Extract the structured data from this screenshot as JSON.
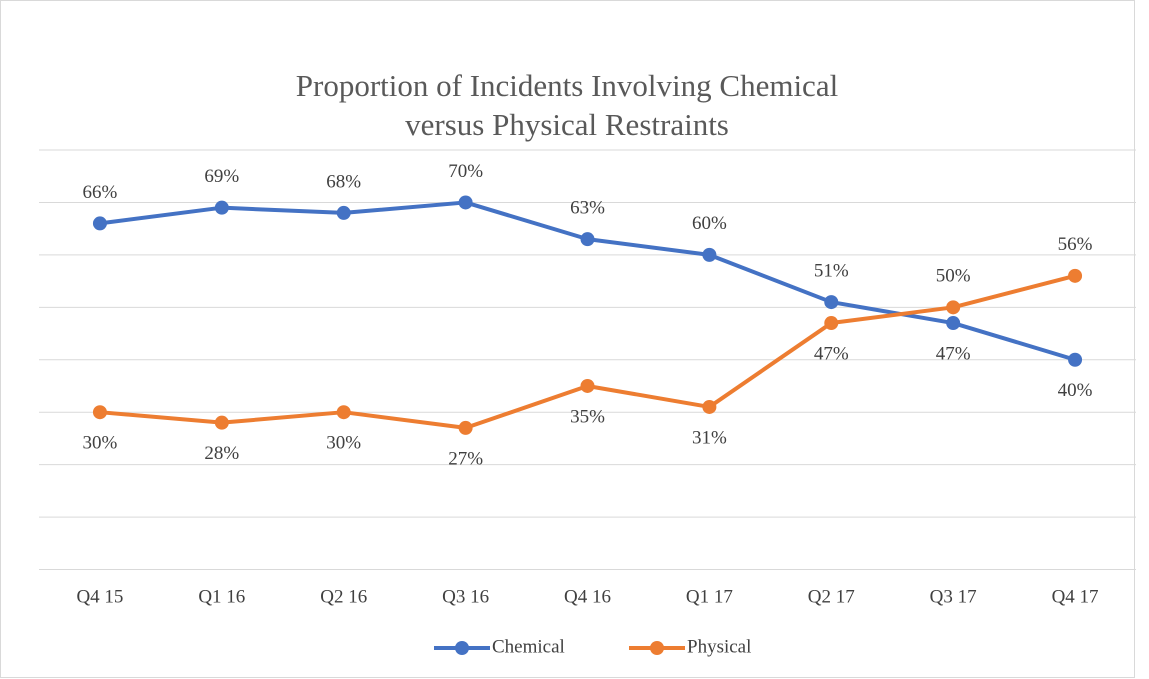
{
  "chart_data": {
    "type": "line",
    "title": "Proportion of Incidents Involving Chemical versus Physical Restraints",
    "categories": [
      "Q4 15",
      "Q1 16",
      "Q2 16",
      "Q3 16",
      "Q4 16",
      "Q1 17",
      "Q2 17",
      "Q3 17",
      "Q4 17"
    ],
    "series": [
      {
        "name": "Chemical",
        "color": "#4472c4",
        "values": [
          66,
          69,
          68,
          70,
          63,
          60,
          51,
          47,
          40
        ],
        "value_labels": [
          "66%",
          "69%",
          "68%",
          "70%",
          "63%",
          "60%",
          "51%",
          "47%",
          "40%"
        ]
      },
      {
        "name": "Physical",
        "color": "#ed7d31",
        "values": [
          30,
          28,
          30,
          27,
          35,
          31,
          47,
          50,
          56
        ],
        "value_labels": [
          "30%",
          "28%",
          "30%",
          "27%",
          "35%",
          "31%",
          "47%",
          "50%",
          "56%"
        ]
      }
    ],
    "ylim": [
      0,
      80
    ],
    "yticks": [
      0,
      10,
      20,
      30,
      40,
      50,
      60,
      70,
      80
    ],
    "grid": true,
    "legend": "bottom"
  }
}
